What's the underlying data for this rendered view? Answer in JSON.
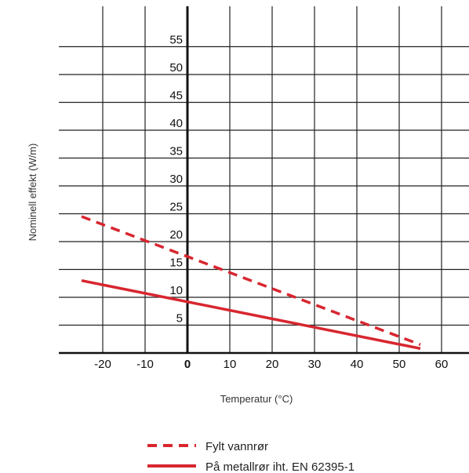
{
  "chart_data": {
    "type": "line",
    "xlabel": "Temperatur (°C)",
    "ylabel": "Nominell effekt (W/m)",
    "xlim": [
      -30,
      65
    ],
    "ylim": [
      0,
      60
    ],
    "x_ticks": [
      -20,
      -10,
      0,
      10,
      20,
      30,
      40,
      50,
      60
    ],
    "x_tick_labels": [
      "-20",
      "-10",
      "0",
      "10",
      "20",
      "30",
      "40",
      "50",
      "60"
    ],
    "y_ticks": [
      5,
      10,
      15,
      20,
      25,
      30,
      35,
      40,
      45,
      50,
      55
    ],
    "y_tick_labels": [
      "5",
      "10",
      "15",
      "20",
      "25",
      "30",
      "35",
      "40",
      "45",
      "50",
      "55"
    ],
    "grid": true,
    "legend_position": "bottom-center",
    "series": [
      {
        "name": "Fylt vannrør",
        "style": "dashed",
        "color": "#d8262f",
        "x": [
          -25,
          55
        ],
        "y": [
          24.5,
          1.5
        ]
      },
      {
        "name": "På metallrør iht. EN 62395-1",
        "style": "solid",
        "color": "#d8262f",
        "x": [
          -25,
          55
        ],
        "y": [
          13,
          0.8
        ]
      }
    ]
  }
}
